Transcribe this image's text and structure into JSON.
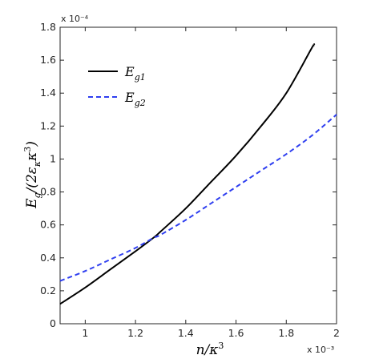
{
  "chart_data": {
    "type": "line",
    "xlabel": "n/κ³",
    "ylabel": "Eg/(2εκκ³)",
    "x_exponent": "x 10⁻³",
    "y_exponent": "x 10⁻⁴",
    "xlim": [
      0.9,
      2.0
    ],
    "ylim": [
      0,
      1.8
    ],
    "xticks": [
      1,
      1.2,
      1.4,
      1.6,
      1.8,
      2
    ],
    "xtick_labels": [
      "1",
      "1.2",
      "1.4",
      "1.6",
      "1.8",
      "2"
    ],
    "yticks": [
      0,
      0.2,
      0.4,
      0.6,
      0.8,
      1,
      1.2,
      1.4,
      1.6,
      1.8
    ],
    "ytick_labels": [
      "0",
      "0.2",
      "0.4",
      "0.6",
      "0.8",
      "1",
      "1.2",
      "1.4",
      "1.6",
      "1.8"
    ],
    "grid": false,
    "legend_position": "top-left",
    "series": [
      {
        "name": "E_g1",
        "legend_main": "E",
        "legend_sub": "g1",
        "color": "#000000",
        "style": "solid",
        "x": [
          0.9,
          1.0,
          1.1,
          1.2,
          1.27,
          1.3,
          1.4,
          1.5,
          1.6,
          1.7,
          1.8,
          1.9,
          1.91
        ],
        "y": [
          0.12,
          0.22,
          0.33,
          0.44,
          0.52,
          0.56,
          0.7,
          0.86,
          1.02,
          1.2,
          1.4,
          1.67,
          1.69
        ]
      },
      {
        "name": "E_g2",
        "legend_main": "E",
        "legend_sub": "g2",
        "color": "#2f3ff0",
        "style": "dashed",
        "x": [
          0.9,
          1.0,
          1.1,
          1.2,
          1.27,
          1.3,
          1.4,
          1.5,
          1.6,
          1.7,
          1.8,
          1.9,
          2.0
        ],
        "y": [
          0.26,
          0.32,
          0.39,
          0.46,
          0.52,
          0.54,
          0.63,
          0.73,
          0.83,
          0.93,
          1.03,
          1.14,
          1.27
        ]
      }
    ]
  }
}
